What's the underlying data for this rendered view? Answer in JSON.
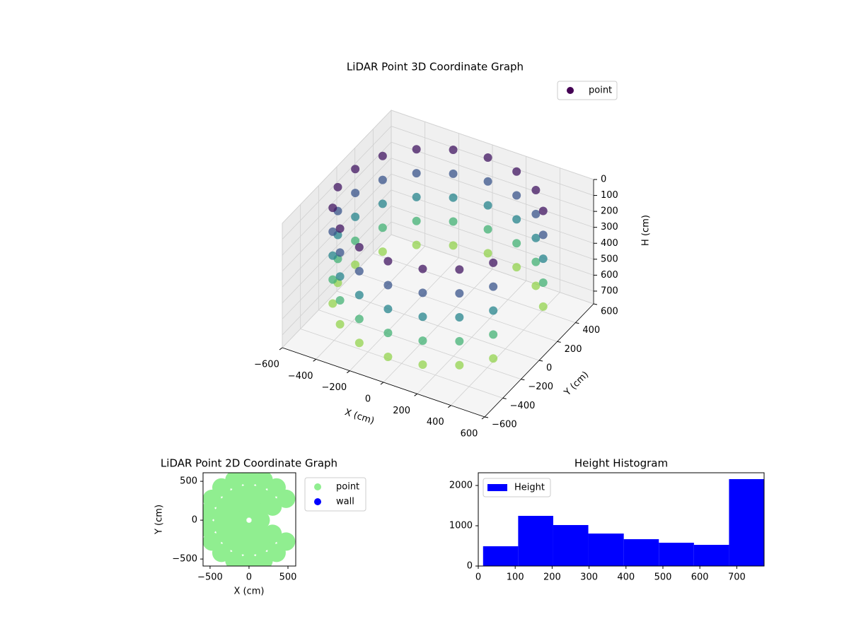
{
  "chart_data": [
    {
      "type": "scatter3d",
      "title": "LiDAR Point 3D Coordinate Graph",
      "xlabel": "X (cm)",
      "ylabel": "Y (cm)",
      "zlabel": "H (cm)",
      "series": [
        {
          "name": "point",
          "color": "#440154",
          "colormap": "viridis",
          "x": [
            0,
            0,
            0,
            0,
            0,
            -188,
            -188,
            -188,
            -188,
            -188,
            -354,
            -354,
            -354,
            -354,
            -354,
            188,
            188,
            188,
            188,
            188,
            -476,
            -476,
            -476,
            -476,
            -476,
            354,
            354,
            354,
            354,
            354,
            -542,
            -542,
            -542,
            -542,
            -542,
            476,
            476,
            476,
            476,
            476,
            -542,
            -542,
            -542,
            -542,
            -542,
            476,
            476,
            476,
            476,
            476,
            -476,
            -476,
            -476,
            -476,
            -476,
            354,
            354,
            354,
            354,
            354,
            -354,
            -354,
            -354,
            -354,
            -354,
            188,
            188,
            188,
            188,
            188,
            -188,
            -188,
            -188,
            -188,
            -188,
            0,
            0,
            0,
            0,
            0
          ],
          "y": [
            550,
            550,
            550,
            550,
            550,
            517,
            517,
            517,
            517,
            517,
            421,
            421,
            421,
            421,
            421,
            517,
            517,
            517,
            517,
            517,
            275,
            275,
            275,
            275,
            275,
            421,
            421,
            421,
            421,
            421,
            96,
            96,
            96,
            96,
            96,
            275,
            275,
            275,
            275,
            275,
            -96,
            -96,
            -96,
            -96,
            -96,
            -275,
            -275,
            -275,
            -275,
            -275,
            -275,
            -275,
            -275,
            -275,
            -275,
            -421,
            -421,
            -421,
            -421,
            -421,
            -421,
            -421,
            -421,
            -421,
            -421,
            -517,
            -517,
            -517,
            -517,
            -517,
            -517,
            -517,
            -517,
            -517,
            -517,
            -550,
            -550,
            -550,
            -550,
            -550
          ],
          "z": [
            50,
            200,
            350,
            500,
            650,
            50,
            200,
            350,
            500,
            650,
            50,
            200,
            350,
            500,
            650,
            50,
            200,
            350,
            500,
            650,
            50,
            200,
            350,
            500,
            650,
            50,
            200,
            350,
            500,
            650,
            50,
            200,
            350,
            500,
            650,
            50,
            200,
            350,
            500,
            650,
            50,
            200,
            350,
            500,
            650,
            50,
            200,
            350,
            500,
            650,
            50,
            200,
            350,
            500,
            650,
            50,
            200,
            350,
            500,
            650,
            50,
            200,
            350,
            500,
            650,
            50,
            200,
            350,
            500,
            650,
            50,
            200,
            350,
            500,
            650,
            50,
            200,
            350,
            500,
            650
          ]
        }
      ],
      "xlim": [
        -600,
        600
      ],
      "ylim": [
        -600,
        600
      ],
      "zlim": [
        0,
        780
      ],
      "z_inverted": true,
      "xticks": [
        {
          "value": -600,
          "label": "−600"
        },
        {
          "value": -400,
          "label": "−400"
        },
        {
          "value": -200,
          "label": "−200"
        },
        0,
        200,
        400,
        600
      ],
      "yticks": [
        {
          "value": -600,
          "label": "−600"
        },
        {
          "value": -400,
          "label": "−400"
        },
        {
          "value": -200,
          "label": "−200"
        },
        0,
        200,
        400,
        600
      ],
      "zticks": [
        0,
        100,
        200,
        300,
        400,
        500,
        600,
        700
      ]
    },
    {
      "type": "scatter",
      "title": "LiDAR Point 2D Coordinate Graph",
      "xlabel": "X (cm)",
      "ylabel": "Y (cm)",
      "series": [
        {
          "name": "point",
          "color": "#90ee90",
          "x": [
            476,
            354,
            188,
            0,
            -188,
            -354,
            -476,
            -542,
            -542,
            -476,
            -354,
            -188,
            0,
            188,
            354,
            476,
            303,
            225,
            120,
            0,
            -120,
            -225,
            -303,
            -345,
            -345,
            -303,
            -225,
            -120,
            0,
            120,
            225,
            303,
            106,
            0,
            -106,
            -150,
            -106,
            0,
            106,
            150
          ],
          "y": [
            275,
            421,
            517,
            550,
            517,
            421,
            275,
            96,
            -96,
            -275,
            -421,
            -517,
            -550,
            -517,
            -421,
            -275,
            175,
            268,
            329,
            350,
            329,
            268,
            175,
            61,
            -61,
            -175,
            -268,
            -329,
            -350,
            -329,
            -268,
            -175,
            106,
            150,
            106,
            0,
            -106,
            -150,
            -106,
            0
          ]
        },
        {
          "name": "wall",
          "color": "#0000ff",
          "x": [],
          "y": []
        }
      ],
      "xlim": [
        -590,
        600
      ],
      "ylim": [
        -590,
        610
      ],
      "xticks": [
        {
          "value": -500,
          "label": "−500"
        },
        0,
        500
      ],
      "yticks": [
        {
          "value": -500,
          "label": "−500"
        },
        0,
        500
      ]
    },
    {
      "type": "histogram",
      "title": "Height Histogram",
      "series": [
        {
          "name": "Height",
          "color": "#0000ff",
          "bins": [
            13,
            108,
            203,
            298,
            394,
            489,
            584,
            679,
            774
          ],
          "values": [
            491,
            1246,
            1018,
            807,
            667,
            579,
            526,
            2158
          ]
        }
      ],
      "xlim": [
        0,
        774
      ],
      "ylim": [
        0,
        2316
      ],
      "xticks": [
        0,
        100,
        200,
        300,
        400,
        500,
        600,
        700
      ],
      "yticks": [
        0,
        1000,
        2000
      ]
    }
  ]
}
